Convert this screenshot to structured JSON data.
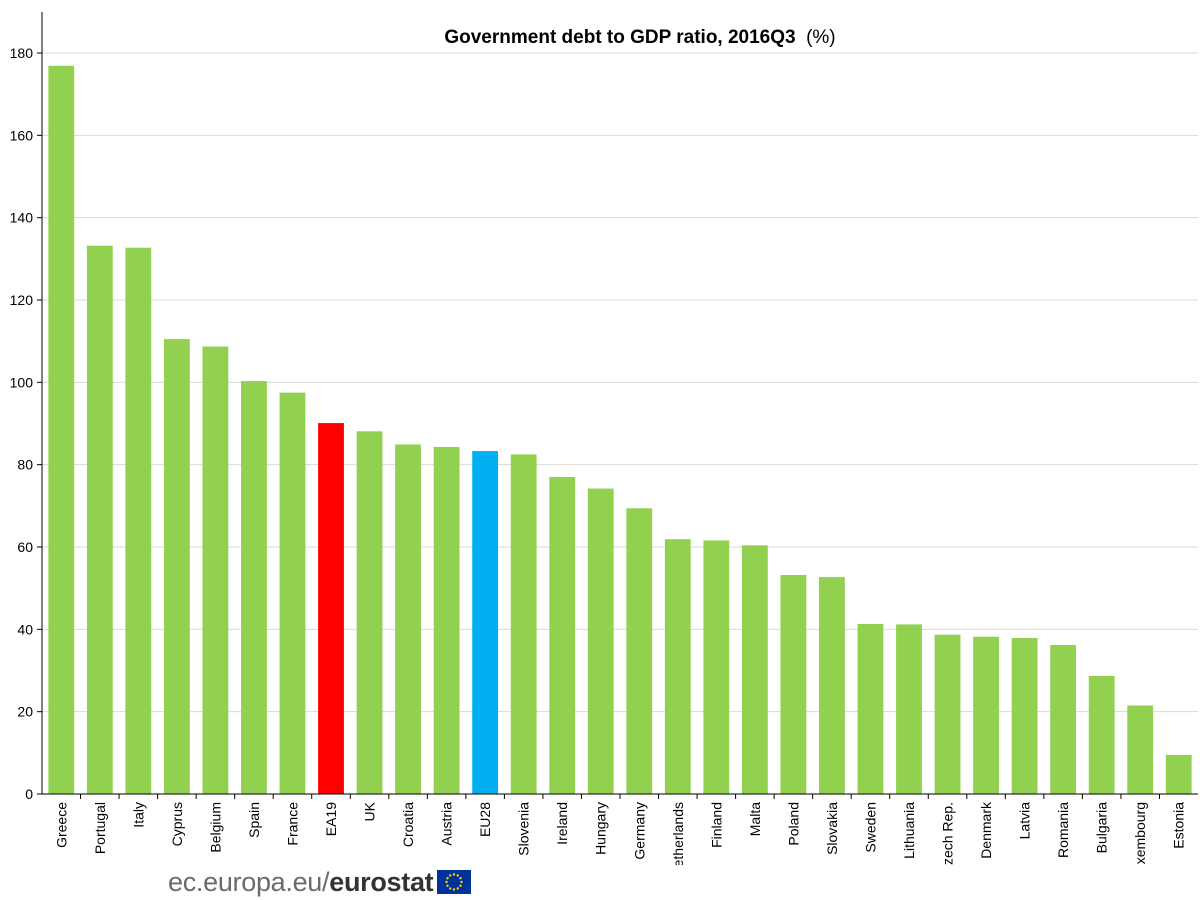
{
  "chart_data": {
    "type": "bar",
    "title": "Government debt to GDP ratio, 2016Q3",
    "title_unit": "(%)",
    "categories": [
      "Greece",
      "Portugal",
      "Italy",
      "Cyprus",
      "Belgium",
      "Spain",
      "France",
      "EA19",
      "UK",
      "Croatia",
      "Austria",
      "EU28",
      "Slovenia",
      "Ireland",
      "Hungary",
      "Germany",
      "Netherlands",
      "Finland",
      "Malta",
      "Poland",
      "Slovakia",
      "Sweden",
      "Lithuania",
      "Czech Rep.",
      "Denmark",
      "Latvia",
      "Romania",
      "Bulgaria",
      "Luxembourg",
      "Estonia"
    ],
    "values": [
      176.9,
      133.2,
      132.7,
      110.5,
      108.7,
      100.3,
      97.5,
      90.1,
      88.1,
      84.9,
      84.3,
      83.3,
      82.5,
      77.0,
      74.2,
      69.4,
      61.9,
      61.6,
      60.4,
      53.2,
      52.7,
      41.3,
      41.2,
      38.7,
      38.2,
      37.9,
      36.2,
      28.7,
      21.5,
      9.5
    ],
    "colors": {
      "default": "#92d050",
      "highlights": {
        "EA19": "#ff0000",
        "EU28": "#00b0f0"
      }
    },
    "ylim": [
      0,
      180
    ],
    "yticks": [
      0,
      20,
      40,
      60,
      80,
      100,
      120,
      140,
      160,
      180
    ],
    "xlabel": "",
    "ylabel": "",
    "grid": true
  },
  "footer": {
    "site": "ec.europa.eu/",
    "brand": "eurostat",
    "flag_icon": "eu-flag-icon"
  }
}
